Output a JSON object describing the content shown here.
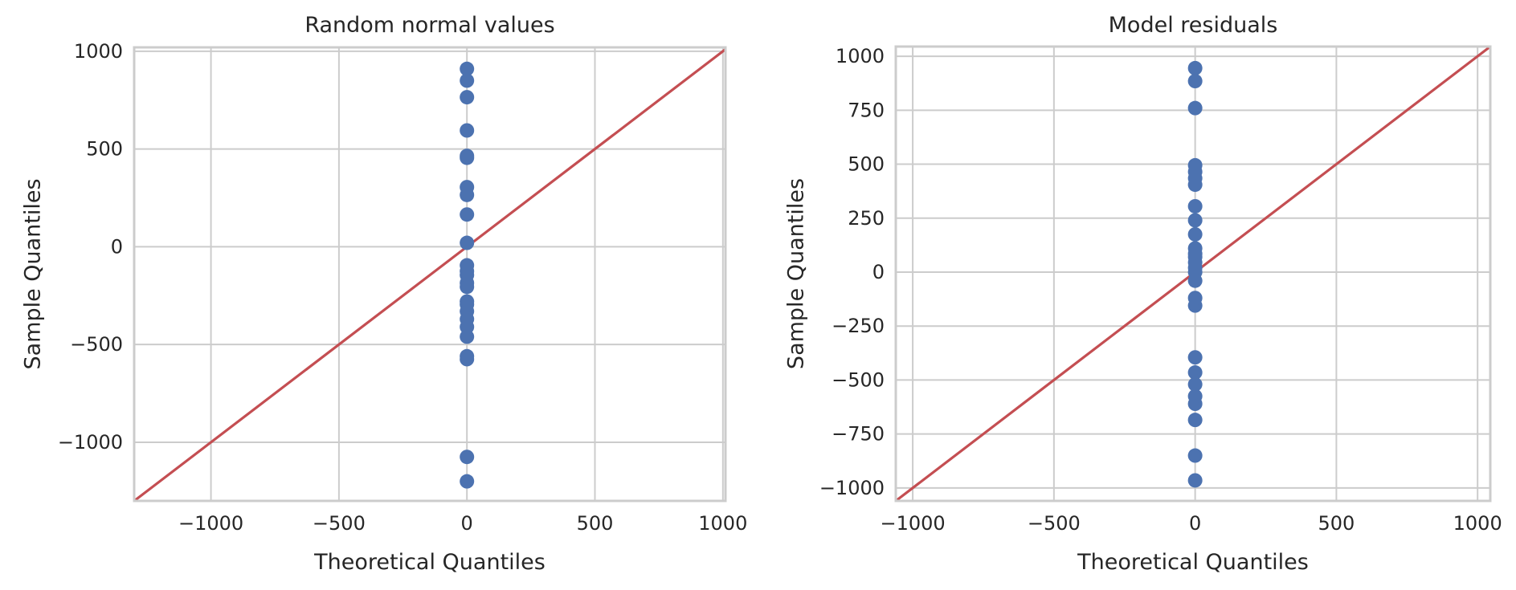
{
  "chart_data": [
    {
      "type": "scatter",
      "title": "Random normal values",
      "xlabel": "Theoretical Quantiles",
      "ylabel": "Sample Quantiles",
      "xlim": [
        -1300,
        1010
      ],
      "ylim": [
        -1300,
        1020
      ],
      "xticks": [
        -1000,
        -500,
        0,
        500,
        1000
      ],
      "xtick_labels": [
        "−1000",
        "−500",
        "0",
        "500",
        "1000"
      ],
      "yticks": [
        -1000,
        -500,
        0,
        500,
        1000
      ],
      "ytick_labels": [
        "−1000",
        "−500",
        "0",
        "500",
        "1000"
      ],
      "grid": true,
      "point_color": "#4c72b0",
      "line_color": "#c44e52",
      "reference_line": [
        [
          -1300,
          -1300
        ],
        [
          1010,
          1010
        ]
      ],
      "points": [
        [
          0,
          -1200
        ],
        [
          0,
          -1075
        ],
        [
          0,
          -575
        ],
        [
          0,
          -560
        ],
        [
          0,
          -460
        ],
        [
          0,
          -410
        ],
        [
          0,
          -370
        ],
        [
          0,
          -330
        ],
        [
          0,
          -295
        ],
        [
          0,
          -280
        ],
        [
          0,
          -205
        ],
        [
          0,
          -185
        ],
        [
          0,
          -145
        ],
        [
          0,
          -125
        ],
        [
          0,
          -95
        ],
        [
          0,
          20
        ],
        [
          0,
          165
        ],
        [
          0,
          265
        ],
        [
          0,
          305
        ],
        [
          0,
          455
        ],
        [
          0,
          465
        ],
        [
          0,
          595
        ],
        [
          0,
          765
        ],
        [
          0,
          850
        ],
        [
          0,
          910
        ]
      ]
    },
    {
      "type": "scatter",
      "title": "Model residuals",
      "xlabel": "Theoretical Quantiles",
      "ylabel": "Sample Quantiles",
      "xlim": [
        -1060,
        1045
      ],
      "ylim": [
        -1060,
        1045
      ],
      "xticks": [
        -1000,
        -500,
        0,
        500,
        1000
      ],
      "xtick_labels": [
        "−1000",
        "−500",
        "0",
        "500",
        "1000"
      ],
      "yticks": [
        -1000,
        -750,
        -500,
        -250,
        0,
        250,
        500,
        750,
        1000
      ],
      "ytick_labels": [
        "−1000",
        "−750",
        "−500",
        "−250",
        "0",
        "250",
        "500",
        "750",
        "1000"
      ],
      "grid": true,
      "point_color": "#4c72b0",
      "line_color": "#c44e52",
      "reference_line": [
        [
          -1060,
          -1060
        ],
        [
          1045,
          1045
        ]
      ],
      "points": [
        [
          0,
          -965
        ],
        [
          0,
          -850
        ],
        [
          0,
          -685
        ],
        [
          0,
          -610
        ],
        [
          0,
          -575
        ],
        [
          0,
          -520
        ],
        [
          0,
          -465
        ],
        [
          0,
          -395
        ],
        [
          0,
          -155
        ],
        [
          0,
          -120
        ],
        [
          0,
          -40
        ],
        [
          0,
          0
        ],
        [
          0,
          20
        ],
        [
          0,
          45
        ],
        [
          0,
          70
        ],
        [
          0,
          85
        ],
        [
          0,
          110
        ],
        [
          0,
          175
        ],
        [
          0,
          240
        ],
        [
          0,
          305
        ],
        [
          0,
          405
        ],
        [
          0,
          435
        ],
        [
          0,
          465
        ],
        [
          0,
          495
        ],
        [
          0,
          760
        ],
        [
          0,
          885
        ],
        [
          0,
          945
        ]
      ]
    }
  ]
}
